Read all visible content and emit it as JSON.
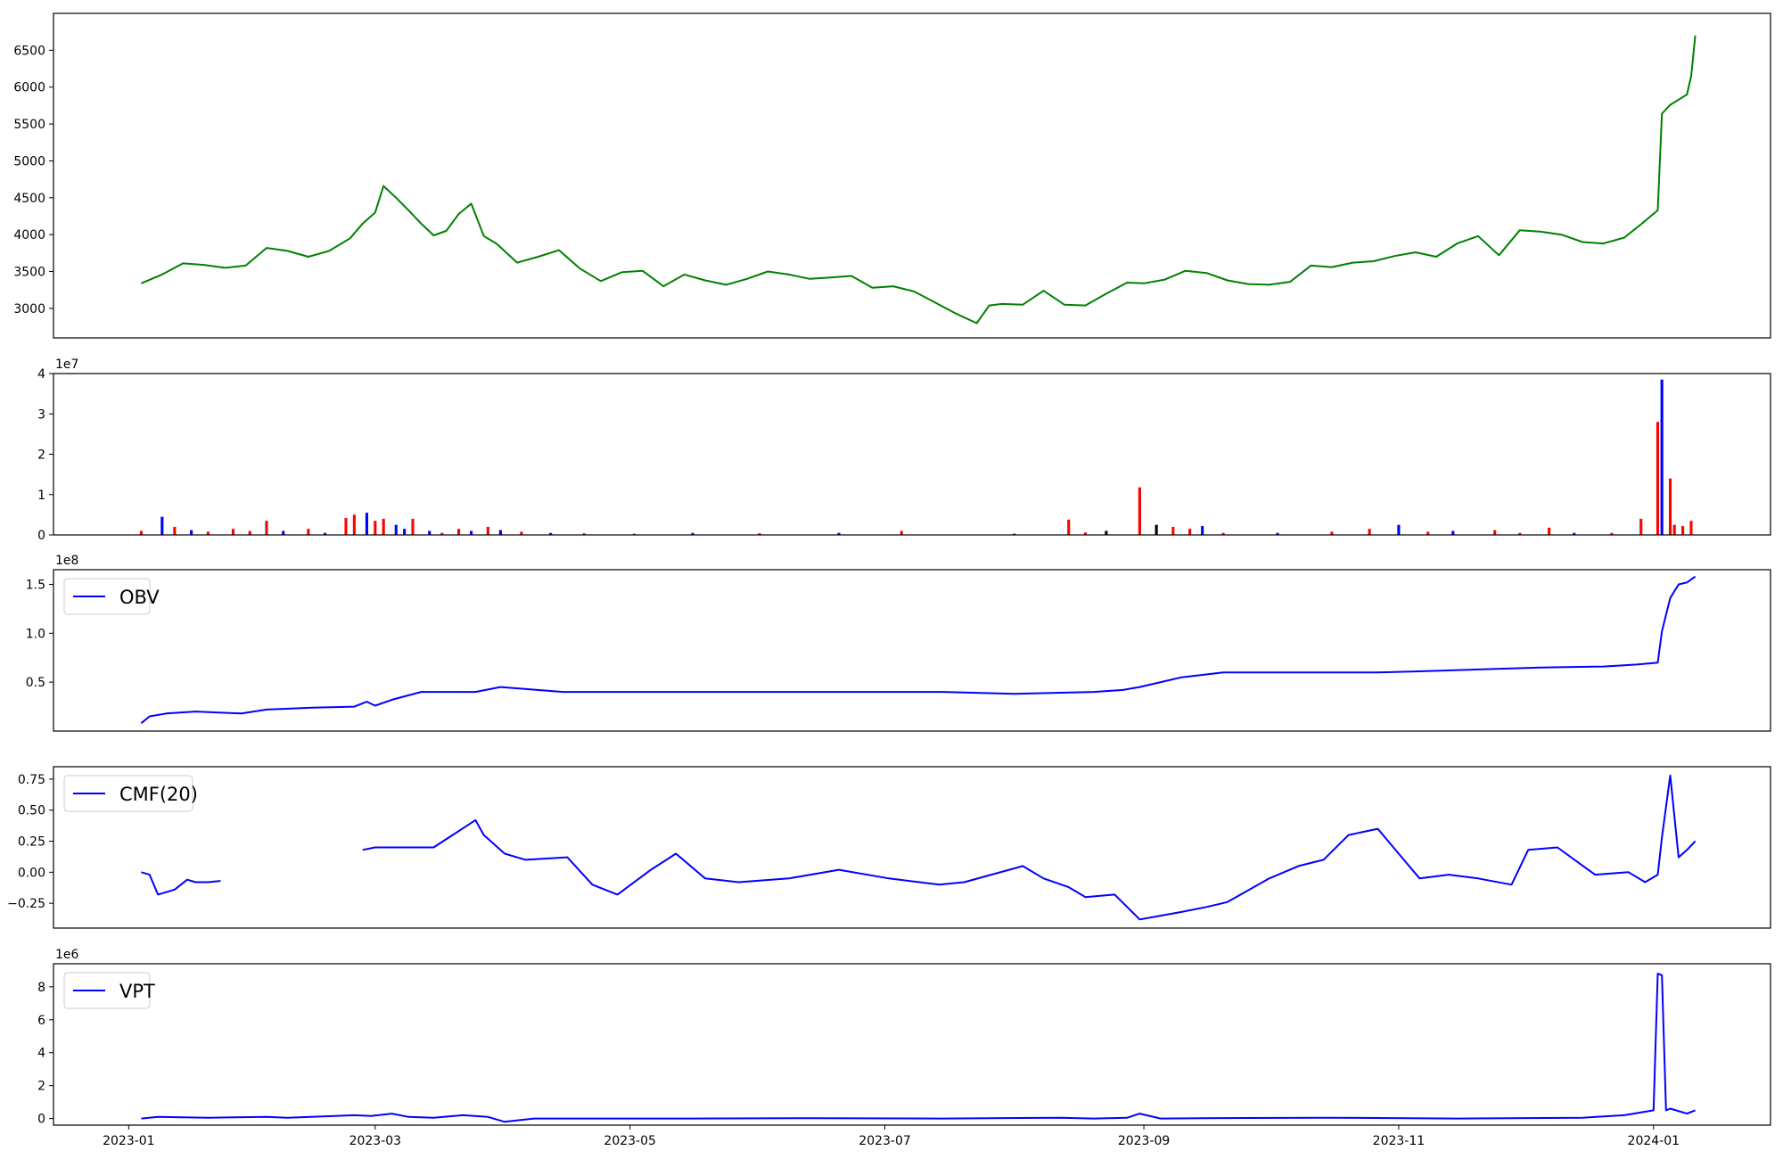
{
  "figure": {
    "x_axis": {
      "type": "date",
      "range": [
        "2022-12-14",
        "2024-01-29"
      ],
      "ticks": [
        {
          "date": "2023-01-01",
          "label": "2023-01"
        },
        {
          "date": "2023-03-01",
          "label": "2023-03"
        },
        {
          "date": "2023-05-01",
          "label": "2023-05"
        },
        {
          "date": "2023-07-01",
          "label": "2023-07"
        },
        {
          "date": "2023-09-01",
          "label": "2023-09"
        },
        {
          "date": "2023-11-01",
          "label": "2023-11"
        },
        {
          "date": "2024-01-01",
          "label": "2024-01"
        }
      ],
      "shown_on": "last panel only"
    },
    "colors": {
      "price": "#008000",
      "indicator": "#0000ff",
      "volume_up": "#0000ff",
      "volume_down": "#ff0000",
      "volume_flat": "#000000"
    }
  },
  "chart_data": [
    {
      "type": "line",
      "panel": "price",
      "title": "",
      "xlabel": "",
      "ylabel": "",
      "ylim": [
        2600,
        7000
      ],
      "yticks": [
        3000,
        3500,
        4000,
        4500,
        5000,
        5500,
        6000,
        6500
      ],
      "ytick_labels": [
        "3000",
        "3500",
        "4000",
        "4500",
        "5000",
        "5500",
        "6000",
        "6500"
      ],
      "color": "#008000",
      "legend": null,
      "x": [
        "2023-01-04",
        "2023-01-09",
        "2023-01-14",
        "2023-01-19",
        "2023-01-24",
        "2023-01-29",
        "2023-02-03",
        "2023-02-08",
        "2023-02-13",
        "2023-02-18",
        "2023-02-23",
        "2023-02-26",
        "2023-03-01",
        "2023-03-03",
        "2023-03-06",
        "2023-03-09",
        "2023-03-12",
        "2023-03-15",
        "2023-03-18",
        "2023-03-21",
        "2023-03-24",
        "2023-03-27",
        "2023-03-30",
        "2023-04-04",
        "2023-04-09",
        "2023-04-14",
        "2023-04-19",
        "2023-04-24",
        "2023-04-29",
        "2023-05-04",
        "2023-05-09",
        "2023-05-14",
        "2023-05-19",
        "2023-05-24",
        "2023-05-29",
        "2023-06-03",
        "2023-06-08",
        "2023-06-13",
        "2023-06-18",
        "2023-06-23",
        "2023-06-28",
        "2023-07-03",
        "2023-07-08",
        "2023-07-13",
        "2023-07-18",
        "2023-07-23",
        "2023-07-26",
        "2023-07-29",
        "2023-08-03",
        "2023-08-08",
        "2023-08-13",
        "2023-08-18",
        "2023-08-23",
        "2023-08-28",
        "2023-09-01",
        "2023-09-06",
        "2023-09-11",
        "2023-09-16",
        "2023-09-21",
        "2023-09-26",
        "2023-10-01",
        "2023-10-06",
        "2023-10-11",
        "2023-10-16",
        "2023-10-21",
        "2023-10-26",
        "2023-10-31",
        "2023-11-05",
        "2023-11-10",
        "2023-11-15",
        "2023-11-20",
        "2023-11-25",
        "2023-11-30",
        "2023-12-05",
        "2023-12-10",
        "2023-12-15",
        "2023-12-20",
        "2023-12-25",
        "2023-12-29",
        "2024-01-02",
        "2024-01-03",
        "2024-01-05",
        "2024-01-07",
        "2024-01-09",
        "2024-01-10",
        "2024-01-11"
      ],
      "y": [
        3340,
        3460,
        3610,
        3590,
        3550,
        3580,
        3820,
        3780,
        3700,
        3780,
        3950,
        4150,
        4300,
        4660,
        4500,
        4330,
        4150,
        3990,
        4050,
        4280,
        4420,
        3980,
        3880,
        3620,
        3700,
        3790,
        3540,
        3370,
        3490,
        3510,
        3300,
        3460,
        3380,
        3320,
        3400,
        3500,
        3460,
        3400,
        3420,
        3440,
        3280,
        3300,
        3230,
        3080,
        2930,
        2800,
        3040,
        3060,
        3050,
        3240,
        3050,
        3040,
        3200,
        3350,
        3340,
        3390,
        3510,
        3480,
        3380,
        3330,
        3320,
        3360,
        3580,
        3560,
        3620,
        3640,
        3710,
        3760,
        3700,
        3880,
        3980,
        3720,
        4060,
        4040,
        4000,
        3900,
        3880,
        3960,
        4140,
        4330,
        5640,
        5760,
        5830,
        5900,
        6150,
        6700
      ]
    },
    {
      "type": "bar",
      "panel": "volume",
      "title": "",
      "xlabel": "",
      "ylabel": "",
      "y_multiplier": "1e7",
      "ylim": [
        0,
        4
      ],
      "yticks": [
        0,
        1,
        2,
        3,
        4
      ],
      "ytick_labels": [
        "0",
        "1",
        "2",
        "3",
        "4"
      ],
      "legend": null,
      "x": [
        "2023-01-04",
        "2023-01-09",
        "2023-01-12",
        "2023-01-16",
        "2023-01-20",
        "2023-01-26",
        "2023-01-30",
        "2023-02-03",
        "2023-02-07",
        "2023-02-13",
        "2023-02-17",
        "2023-02-22",
        "2023-02-24",
        "2023-02-27",
        "2023-03-01",
        "2023-03-03",
        "2023-03-06",
        "2023-03-08",
        "2023-03-10",
        "2023-03-14",
        "2023-03-17",
        "2023-03-21",
        "2023-03-24",
        "2023-03-28",
        "2023-03-31",
        "2023-04-05",
        "2023-04-12",
        "2023-04-20",
        "2023-05-02",
        "2023-05-16",
        "2023-06-01",
        "2023-06-20",
        "2023-07-05",
        "2023-08-01",
        "2023-08-14",
        "2023-08-18",
        "2023-08-23",
        "2023-08-31",
        "2023-09-04",
        "2023-09-08",
        "2023-09-12",
        "2023-09-15",
        "2023-09-20",
        "2023-10-03",
        "2023-10-16",
        "2023-10-25",
        "2023-11-01",
        "2023-11-08",
        "2023-11-14",
        "2023-11-24",
        "2023-11-30",
        "2023-12-07",
        "2023-12-13",
        "2023-12-22",
        "2023-12-29",
        "2024-01-02",
        "2024-01-03",
        "2024-01-05",
        "2024-01-06",
        "2024-01-08",
        "2024-01-10"
      ],
      "values": [
        0.1,
        0.45,
        0.2,
        0.12,
        0.08,
        0.15,
        0.1,
        0.35,
        0.1,
        0.15,
        0.05,
        0.42,
        0.5,
        0.55,
        0.35,
        0.4,
        0.25,
        0.15,
        0.4,
        0.1,
        0.05,
        0.15,
        0.1,
        0.2,
        0.12,
        0.08,
        0.05,
        0.04,
        0.03,
        0.05,
        0.04,
        0.05,
        0.1,
        0.03,
        0.38,
        0.06,
        0.1,
        1.18,
        0.25,
        0.2,
        0.15,
        0.22,
        0.05,
        0.05,
        0.08,
        0.15,
        0.25,
        0.08,
        0.1,
        0.12,
        0.05,
        0.18,
        0.05,
        0.05,
        0.4,
        2.8,
        3.85,
        1.4,
        0.25,
        0.22,
        0.35
      ],
      "directions": [
        "down",
        "up",
        "down",
        "up",
        "down",
        "down",
        "down",
        "down",
        "up",
        "down",
        "up",
        "down",
        "down",
        "up",
        "down",
        "down",
        "up",
        "up",
        "down",
        "up",
        "down",
        "down",
        "up",
        "down",
        "up",
        "down",
        "up",
        "down",
        "down",
        "up",
        "down",
        "up",
        "down",
        "up",
        "down",
        "down",
        "flat",
        "down",
        "flat",
        "down",
        "down",
        "up",
        "down",
        "up",
        "down",
        "down",
        "up",
        "down",
        "up",
        "down",
        "down",
        "down",
        "up",
        "down",
        "down",
        "down",
        "up",
        "down",
        "down",
        "down",
        "down"
      ]
    },
    {
      "type": "line",
      "panel": "obv",
      "title": "",
      "xlabel": "",
      "ylabel": "",
      "y_multiplier": "1e8",
      "ylim": [
        0,
        1.65
      ],
      "yticks": [
        0.5,
        1.0,
        1.5
      ],
      "ytick_labels": [
        "0.5",
        "1.0",
        "1.5"
      ],
      "color": "#0000ff",
      "legend": {
        "position": "upper-left"
      },
      "series": [
        {
          "name": "OBV",
          "x": [
            "2023-01-04",
            "2023-01-06",
            "2023-01-10",
            "2023-01-17",
            "2023-01-28",
            "2023-02-03",
            "2023-02-14",
            "2023-02-24",
            "2023-02-27",
            "2023-03-01",
            "2023-03-05",
            "2023-03-12",
            "2023-03-18",
            "2023-03-25",
            "2023-03-31",
            "2023-04-15",
            "2023-05-15",
            "2023-06-15",
            "2023-07-15",
            "2023-08-01",
            "2023-08-20",
            "2023-08-27",
            "2023-08-31",
            "2023-09-10",
            "2023-09-20",
            "2023-10-10",
            "2023-10-27",
            "2023-11-05",
            "2023-11-20",
            "2023-12-05",
            "2023-12-20",
            "2023-12-28",
            "2024-01-02",
            "2024-01-03",
            "2024-01-05",
            "2024-01-07",
            "2024-01-09",
            "2024-01-11"
          ],
          "values": [
            0.08,
            0.15,
            0.18,
            0.2,
            0.18,
            0.22,
            0.24,
            0.25,
            0.3,
            0.26,
            0.32,
            0.4,
            0.4,
            0.4,
            0.45,
            0.4,
            0.4,
            0.4,
            0.4,
            0.38,
            0.4,
            0.42,
            0.45,
            0.55,
            0.6,
            0.6,
            0.6,
            0.61,
            0.63,
            0.65,
            0.66,
            0.68,
            0.7,
            1.02,
            1.36,
            1.5,
            1.52,
            1.58
          ]
        }
      ]
    },
    {
      "type": "line",
      "panel": "cmf",
      "title": "",
      "xlabel": "",
      "ylabel": "",
      "ylim": [
        -0.45,
        0.85
      ],
      "yticks": [
        -0.25,
        0.0,
        0.25,
        0.5,
        0.75
      ],
      "ytick_labels": [
        "−0.25",
        "0.00",
        "0.25",
        "0.50",
        "0.75"
      ],
      "color": "#0000ff",
      "legend": {
        "position": "upper-left"
      },
      "series": [
        {
          "name": "CMF(20)",
          "segments": [
            {
              "x": [
                "2023-01-04",
                "2023-01-06",
                "2023-01-08",
                "2023-01-12",
                "2023-01-15",
                "2023-01-17",
                "2023-01-20",
                "2023-01-23"
              ],
              "values": [
                0.0,
                -0.02,
                -0.18,
                -0.14,
                -0.06,
                -0.08,
                -0.08,
                -0.07
              ]
            },
            {
              "x": [
                "2023-02-26",
                "2023-03-01",
                "2023-03-06",
                "2023-03-15",
                "2023-03-25",
                "2023-03-27",
                "2023-04-01",
                "2023-04-06",
                "2023-04-16",
                "2023-04-22",
                "2023-04-28",
                "2023-05-06",
                "2023-05-12",
                "2023-05-19",
                "2023-05-27",
                "2023-06-08",
                "2023-06-20",
                "2023-07-02",
                "2023-07-14",
                "2023-07-20",
                "2023-08-03",
                "2023-08-08",
                "2023-08-14",
                "2023-08-18",
                "2023-08-25",
                "2023-08-31",
                "2023-09-05",
                "2023-09-10",
                "2023-09-16",
                "2023-09-21",
                "2023-10-01",
                "2023-10-08",
                "2023-10-14",
                "2023-10-20",
                "2023-10-27",
                "2023-11-01",
                "2023-11-06",
                "2023-11-13",
                "2023-11-20",
                "2023-11-28",
                "2023-12-02",
                "2023-12-09",
                "2023-12-18",
                "2023-12-26",
                "2023-12-30",
                "2024-01-02",
                "2024-01-03",
                "2024-01-05",
                "2024-01-07",
                "2024-01-09",
                "2024-01-11"
              ],
              "values": [
                0.18,
                0.2,
                0.2,
                0.2,
                0.42,
                0.3,
                0.15,
                0.1,
                0.12,
                -0.1,
                -0.18,
                0.02,
                0.15,
                -0.05,
                -0.08,
                -0.05,
                0.02,
                -0.05,
                -0.1,
                -0.08,
                0.05,
                -0.05,
                -0.12,
                -0.2,
                -0.18,
                -0.38,
                -0.35,
                -0.32,
                -0.28,
                -0.24,
                -0.05,
                0.05,
                0.1,
                0.3,
                0.35,
                0.15,
                -0.05,
                -0.02,
                -0.05,
                -0.1,
                0.18,
                0.2,
                -0.02,
                0.0,
                -0.08,
                -0.02,
                0.28,
                0.78,
                0.12,
                0.18,
                0.25
              ]
            }
          ]
        }
      ]
    },
    {
      "type": "line",
      "panel": "vpt",
      "title": "",
      "xlabel": "",
      "ylabel": "",
      "y_multiplier": "1e6",
      "ylim": [
        -0.4,
        9.4
      ],
      "yticks": [
        0,
        2,
        4,
        6,
        8
      ],
      "ytick_labels": [
        "0",
        "2",
        "4",
        "6",
        "8"
      ],
      "color": "#0000ff",
      "legend": {
        "position": "upper-left"
      },
      "series": [
        {
          "name": "VPT",
          "x": [
            "2023-01-04",
            "2023-01-08",
            "2023-01-20",
            "2023-02-03",
            "2023-02-08",
            "2023-02-24",
            "2023-02-28",
            "2023-03-05",
            "2023-03-09",
            "2023-03-15",
            "2023-03-22",
            "2023-03-28",
            "2023-04-01",
            "2023-04-08",
            "2023-05-15",
            "2023-06-15",
            "2023-07-15",
            "2023-08-12",
            "2023-08-20",
            "2023-08-28",
            "2023-08-31",
            "2023-09-05",
            "2023-09-15",
            "2023-10-15",
            "2023-11-15",
            "2023-12-15",
            "2023-12-25",
            "2024-01-01",
            "2024-01-02",
            "2024-01-03",
            "2024-01-04",
            "2024-01-05",
            "2024-01-09",
            "2024-01-11"
          ],
          "values": [
            0.0,
            0.1,
            0.05,
            0.1,
            0.05,
            0.2,
            0.15,
            0.3,
            0.1,
            0.05,
            0.2,
            0.1,
            -0.2,
            0.0,
            0.0,
            0.02,
            0.0,
            0.05,
            0.0,
            0.05,
            0.3,
            0.0,
            0.02,
            0.05,
            0.0,
            0.05,
            0.2,
            0.5,
            8.8,
            8.7,
            0.5,
            0.6,
            0.3,
            0.5
          ]
        }
      ]
    }
  ]
}
